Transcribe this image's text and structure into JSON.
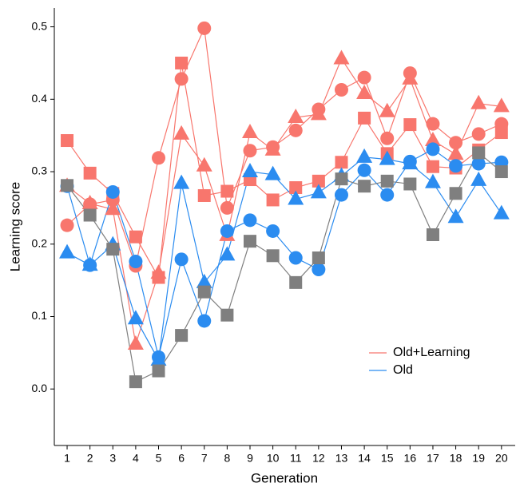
{
  "chart_data": {
    "type": "line",
    "xlabel": "Generation",
    "ylabel": "Learning score",
    "x": [
      1,
      2,
      3,
      4,
      5,
      6,
      7,
      8,
      9,
      10,
      11,
      12,
      13,
      14,
      15,
      16,
      17,
      18,
      19,
      20
    ],
    "xlim": [
      0.44,
      20.6
    ],
    "xticks": [
      1,
      2,
      3,
      4,
      5,
      6,
      7,
      8,
      9,
      10,
      11,
      12,
      13,
      14,
      15,
      16,
      17,
      18,
      19,
      20
    ],
    "ylim": [
      -0.078,
      0.526
    ],
    "yticks": [
      {
        "value": 0,
        "label": "0.0"
      },
      0.1,
      0.2,
      0.3,
      0.4,
      0.5
    ],
    "grid": false,
    "legend_position": "bottomright",
    "legend": [
      {
        "name": "Old+Learning",
        "color": "#f8766d"
      },
      {
        "name": "Old",
        "color": "#2b8cf0"
      }
    ],
    "series": [
      {
        "marker": "square",
        "color": "#f8766d",
        "values": [
          0.343,
          0.298,
          0.27,
          0.21,
          0.154,
          0.45,
          0.267,
          0.273,
          0.289,
          0.261,
          0.278,
          0.287,
          0.313,
          0.374,
          0.325,
          0.365,
          0.307,
          0.305,
          0.33,
          0.354
        ]
      },
      {
        "marker": "circle",
        "color": "#f8766d",
        "values": [
          0.226,
          0.255,
          0.261,
          0.17,
          0.319,
          0.428,
          0.498,
          0.25,
          0.329,
          0.334,
          0.357,
          0.386,
          0.413,
          0.43,
          0.346,
          0.436,
          0.366,
          0.34,
          0.352,
          0.366
        ]
      },
      {
        "marker": "triangle",
        "color": "#f8766d",
        "values": [
          0.28,
          0.256,
          0.248,
          0.062,
          0.16,
          0.352,
          0.308,
          0.212,
          0.354,
          0.33,
          0.375,
          0.379,
          0.456,
          0.408,
          0.383,
          0.428,
          0.343,
          0.324,
          0.394,
          0.39
        ]
      },
      {
        "marker": "circle",
        "color": "#2b8cf0",
        "values": [
          0.28,
          0.171,
          0.272,
          0.176,
          0.044,
          0.179,
          0.094,
          0.218,
          0.233,
          0.218,
          0.181,
          0.165,
          0.268,
          0.302,
          0.268,
          0.314,
          0.331,
          0.308,
          0.311,
          0.313
        ]
      },
      {
        "marker": "triangle",
        "color": "#2b8cf0",
        "values": [
          0.188,
          0.171,
          0.199,
          0.097,
          0.04,
          0.284,
          0.147,
          0.185,
          0.3,
          0.296,
          0.262,
          0.271,
          0.294,
          0.32,
          0.317,
          0.311,
          0.285,
          0.237,
          0.288,
          0.242
        ]
      },
      {
        "marker": "square",
        "color": "#7f7f7f",
        "values": [
          0.281,
          0.24,
          0.193,
          0.01,
          0.025,
          0.074,
          0.134,
          0.102,
          0.204,
          0.184,
          0.147,
          0.181,
          0.29,
          0.28,
          0.287,
          0.283,
          0.213,
          0.27,
          0.326,
          0.3
        ]
      }
    ]
  }
}
